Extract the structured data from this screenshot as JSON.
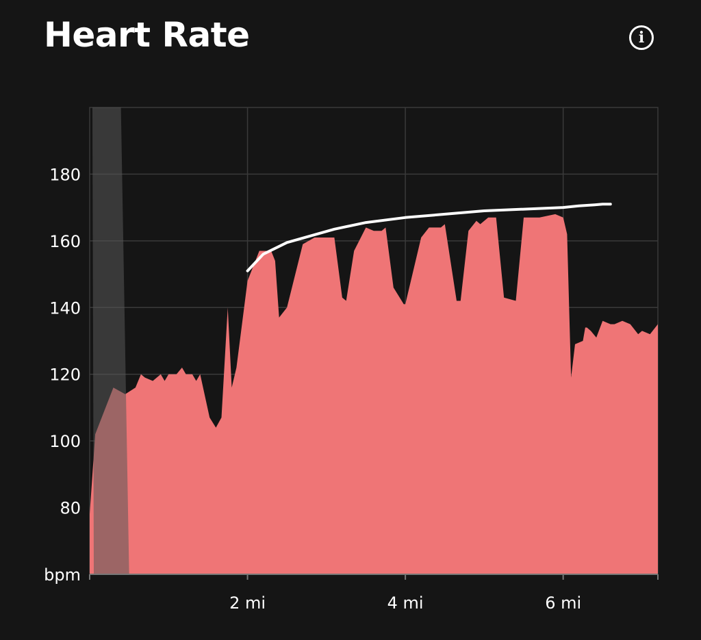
{
  "header": {
    "title": "Heart Rate",
    "info_icon": "info-circle-icon",
    "info_glyph": "i"
  },
  "colors": {
    "background": "#151515",
    "area": "#ef7576",
    "grid": "#3a3a3a",
    "shaded_band": "#585858",
    "trend_line": "#ffffff",
    "text": "#ffffff"
  },
  "chart_data": {
    "type": "area",
    "title": "Heart Rate",
    "xlabel": "",
    "ylabel": "bpm",
    "x_unit": "mi",
    "xlim": [
      0,
      7.2
    ],
    "ylim": [
      60,
      200
    ],
    "y_ticks": [
      180,
      160,
      140,
      120,
      100,
      80
    ],
    "y_tick_labels": [
      "180",
      "160",
      "140",
      "120",
      "100",
      "80"
    ],
    "y_unit_label": "bpm",
    "x_ticks": [
      2,
      4,
      6
    ],
    "x_tick_labels": [
      "2 mi",
      "4 mi",
      "6 mi"
    ],
    "grid": true,
    "series": [
      {
        "x": [
          0,
          0.07,
          0.3,
          0.45,
          0.58,
          0.65,
          0.7,
          0.8,
          0.9,
          0.95,
          1.0,
          1.05,
          1.1,
          1.17,
          1.22,
          1.3,
          1.35,
          1.4,
          1.52,
          1.6,
          1.67,
          1.75,
          1.8,
          1.86,
          2.0,
          2.15,
          2.3,
          2.35,
          2.4,
          2.5,
          2.7,
          2.85,
          2.95,
          3.1,
          3.2,
          3.25,
          3.35,
          3.5,
          3.6,
          3.7,
          3.75,
          3.85,
          3.98,
          4.0,
          4.2,
          4.3,
          4.45,
          4.5,
          4.65,
          4.7,
          4.8,
          4.9,
          4.95,
          5.05,
          5.15,
          5.25,
          5.4,
          5.5,
          5.6,
          5.7,
          5.9,
          6.0,
          6.05,
          6.1,
          6.15,
          6.25,
          6.28,
          6.3,
          6.35,
          6.42,
          6.5,
          6.6,
          6.65,
          6.75,
          6.85,
          6.95,
          7.0,
          7.1,
          7.2
        ],
        "y": [
          78,
          102,
          116,
          114,
          116,
          120,
          119,
          118,
          120,
          118,
          120,
          120,
          120,
          122,
          120,
          120,
          118,
          120,
          107,
          104,
          107,
          140,
          116,
          122,
          148,
          157,
          157,
          154,
          137,
          140,
          159,
          161,
          161,
          161,
          143,
          142,
          157,
          164,
          163,
          163,
          164,
          146,
          141,
          141,
          161,
          164,
          164,
          165,
          142,
          142,
          163,
          166,
          165,
          167,
          167,
          143,
          142,
          167,
          167,
          167,
          168,
          167,
          162,
          119,
          129,
          130,
          134,
          134,
          133,
          131,
          136,
          135,
          135,
          136,
          135,
          132,
          133,
          132,
          135
        ]
      }
    ],
    "shaded_band": {
      "x_start": 0.0,
      "x_end": 0.5
    },
    "annotation_trend": {
      "x": [
        2.0,
        2.2,
        2.5,
        2.8,
        3.1,
        3.5,
        4.0,
        4.5,
        5.0,
        5.5,
        6.0,
        6.2,
        6.4,
        6.5,
        6.6
      ],
      "y": [
        151,
        156,
        159.5,
        161.5,
        163.5,
        165.5,
        167,
        168,
        169,
        169.5,
        170,
        170.5,
        170.8,
        171,
        171
      ]
    }
  }
}
